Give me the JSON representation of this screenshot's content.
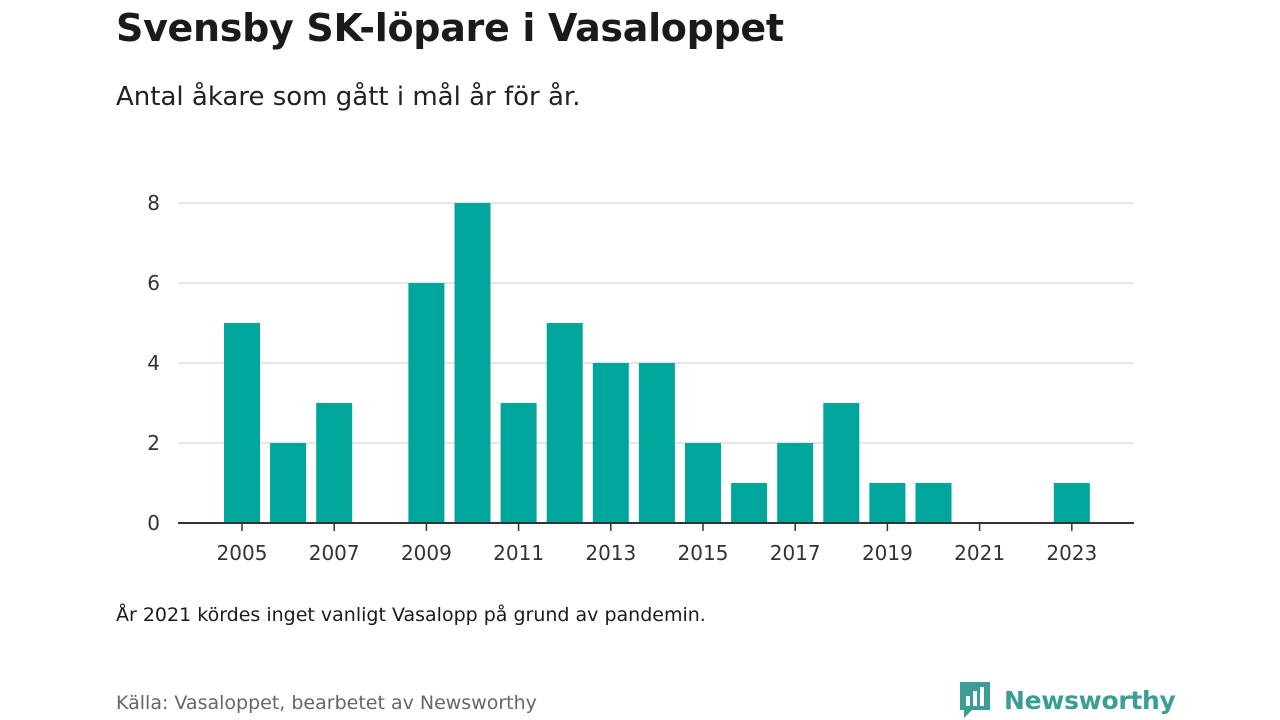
{
  "header": {
    "title": "Svensby SK-löpare i Vasaloppet",
    "subtitle": "Antal åkare som gått i mål år för år."
  },
  "footer": {
    "note": "År 2021 kördes inget vanligt Vasalopp på grund av pandemin.",
    "source": "Källa: Vasaloppet, bearbetet av Newsworthy",
    "brand": "Newsworthy"
  },
  "colors": {
    "bar": "#00a69c",
    "grid": "#dddddd",
    "axis": "#333333",
    "brand": "#3a9e96"
  },
  "icons": {
    "brand_logo": "newsworthy-logo-icon"
  },
  "chart_data": {
    "type": "bar",
    "title": "Svensby SK-löpare i Vasaloppet",
    "subtitle": "Antal åkare som gått i mål år för år.",
    "xlabel": "",
    "ylabel": "",
    "ylim": [
      0,
      8
    ],
    "yticks": [
      0,
      2,
      4,
      6,
      8
    ],
    "xticks": [
      2005,
      2007,
      2009,
      2011,
      2013,
      2015,
      2017,
      2019,
      2021,
      2023
    ],
    "grid": true,
    "x": [
      2005,
      2006,
      2007,
      2008,
      2009,
      2010,
      2011,
      2012,
      2013,
      2014,
      2015,
      2016,
      2017,
      2018,
      2019,
      2020,
      2021,
      2022,
      2023
    ],
    "values": [
      5,
      2,
      3,
      0,
      6,
      8,
      3,
      5,
      4,
      4,
      2,
      1,
      2,
      3,
      1,
      1,
      0,
      0,
      1
    ]
  }
}
